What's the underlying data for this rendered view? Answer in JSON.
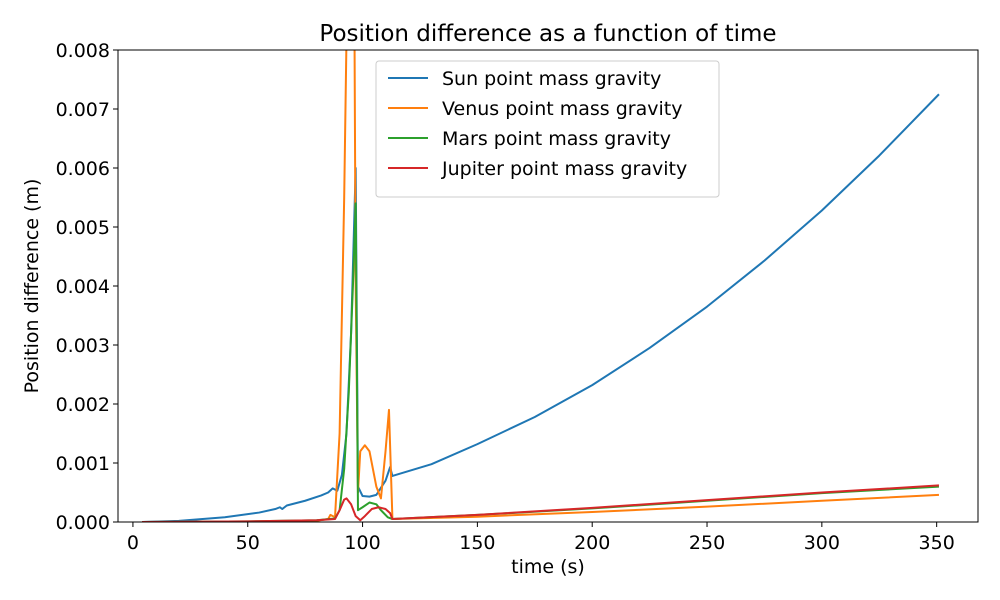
{
  "chart_data": {
    "type": "line",
    "title": "Position difference as a function of time",
    "xlabel": "time (s)",
    "ylabel": "Position difference (m)",
    "xlim": [
      -6.5,
      368
    ],
    "ylim": [
      0,
      0.008
    ],
    "xticks": [
      0,
      50,
      100,
      150,
      200,
      250,
      300,
      350
    ],
    "yticks": [
      0.0,
      0.001,
      0.002,
      0.003,
      0.004,
      0.005,
      0.006,
      0.007,
      0.008
    ],
    "ytick_labels": [
      "0.000",
      "0.001",
      "0.002",
      "0.003",
      "0.004",
      "0.005",
      "0.006",
      "0.007",
      "0.008"
    ],
    "grid": false,
    "legend_position": "top-center",
    "series": [
      {
        "name": "Sun point mass gravity",
        "color": "#1f77b4",
        "points": [
          [
            4,
            0
          ],
          [
            20,
            2e-05
          ],
          [
            40,
            8e-05
          ],
          [
            55,
            0.00016
          ],
          [
            62,
            0.00022
          ],
          [
            64,
            0.00025
          ],
          [
            65,
            0.00022
          ],
          [
            67,
            0.00028
          ],
          [
            75,
            0.00036
          ],
          [
            82,
            0.00045
          ],
          [
            85,
            0.0005
          ],
          [
            87,
            0.00057
          ],
          [
            89,
            0.00053
          ],
          [
            91,
            0.0008
          ],
          [
            93,
            0.0015
          ],
          [
            95,
            0.0032
          ],
          [
            97,
            0.006
          ],
          [
            98,
            0.0006
          ],
          [
            100,
            0.00044
          ],
          [
            103,
            0.00043
          ],
          [
            106,
            0.00046
          ],
          [
            110,
            0.0007
          ],
          [
            112,
            0.00093
          ],
          [
            113,
            0.00078
          ],
          [
            130,
            0.00098
          ],
          [
            150,
            0.00132
          ],
          [
            175,
            0.00178
          ],
          [
            200,
            0.00232
          ],
          [
            225,
            0.00295
          ],
          [
            250,
            0.00365
          ],
          [
            275,
            0.00443
          ],
          [
            300,
            0.00528
          ],
          [
            325,
            0.00621
          ],
          [
            351,
            0.00725
          ]
        ]
      },
      {
        "name": "Venus point mass gravity",
        "color": "#ff7f0e",
        "points": [
          [
            4,
            0
          ],
          [
            50,
            5e-06
          ],
          [
            80,
            2e-05
          ],
          [
            85,
            5e-05
          ],
          [
            86,
            0.00012
          ],
          [
            88,
            8e-05
          ],
          [
            90,
            0.0015
          ],
          [
            92,
            0.0055
          ],
          [
            93,
            0.0082
          ],
          [
            96.5,
            0.0082
          ],
          [
            97,
            0.004
          ],
          [
            98,
            0.0005
          ],
          [
            99,
            0.0012
          ],
          [
            101,
            0.0013
          ],
          [
            103,
            0.0012
          ],
          [
            106,
            0.0006
          ],
          [
            108,
            0.0004
          ],
          [
            110,
            0.0012
          ],
          [
            111.5,
            0.0019
          ],
          [
            113,
            5e-05
          ],
          [
            150,
            9e-05
          ],
          [
            200,
            0.00017
          ],
          [
            250,
            0.00026
          ],
          [
            300,
            0.00036
          ],
          [
            351,
            0.00046
          ]
        ]
      },
      {
        "name": "Mars point mass gravity",
        "color": "#2ca02c",
        "points": [
          [
            4,
            0
          ],
          [
            50,
            1e-05
          ],
          [
            80,
            3e-05
          ],
          [
            88,
            6e-05
          ],
          [
            90,
            0.0002
          ],
          [
            92,
            0.0009
          ],
          [
            94,
            0.0022
          ],
          [
            96,
            0.0042
          ],
          [
            97,
            0.0054
          ],
          [
            98,
            0.0002
          ],
          [
            100,
            0.00025
          ],
          [
            103,
            0.00033
          ],
          [
            106,
            0.0003
          ],
          [
            108,
            0.0002
          ],
          [
            111,
            8e-05
          ],
          [
            113,
            5e-05
          ],
          [
            150,
            0.00012
          ],
          [
            200,
            0.00023
          ],
          [
            250,
            0.00036
          ],
          [
            300,
            0.00049
          ],
          [
            351,
            0.0006
          ]
        ]
      },
      {
        "name": "Jupiter point mass gravity",
        "color": "#d62728",
        "points": [
          [
            4,
            0
          ],
          [
            50,
            1e-05
          ],
          [
            80,
            3e-05
          ],
          [
            88,
            5e-05
          ],
          [
            90,
            0.0002
          ],
          [
            92,
            0.00038
          ],
          [
            93,
            0.0004
          ],
          [
            95,
            0.0003
          ],
          [
            97,
            0.0001
          ],
          [
            99,
            3e-05
          ],
          [
            101,
            0.0001
          ],
          [
            104,
            0.00022
          ],
          [
            107,
            0.00025
          ],
          [
            110,
            0.00022
          ],
          [
            112,
            0.00015
          ],
          [
            113,
            5e-05
          ],
          [
            150,
            0.00012
          ],
          [
            200,
            0.00024
          ],
          [
            250,
            0.00037
          ],
          [
            300,
            0.0005
          ],
          [
            351,
            0.00062
          ]
        ]
      }
    ]
  }
}
